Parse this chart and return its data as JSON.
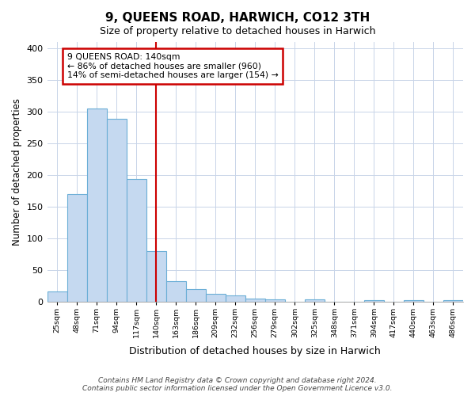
{
  "title": "9, QUEENS ROAD, HARWICH, CO12 3TH",
  "subtitle": "Size of property relative to detached houses in Harwich",
  "xlabel": "Distribution of detached houses by size in Harwich",
  "ylabel": "Number of detached properties",
  "bar_values": [
    16,
    169,
    305,
    288,
    193,
    79,
    32,
    19,
    12,
    9,
    5,
    3,
    0,
    3,
    0,
    0,
    2,
    0,
    2,
    0,
    2
  ],
  "bin_labels": [
    "25sqm",
    "48sqm",
    "71sqm",
    "94sqm",
    "117sqm",
    "140sqm",
    "163sqm",
    "186sqm",
    "209sqm",
    "232sqm",
    "256sqm",
    "279sqm",
    "302sqm",
    "325sqm",
    "348sqm",
    "371sqm",
    "394sqm",
    "417sqm",
    "440sqm",
    "463sqm",
    "486sqm"
  ],
  "bar_color": "#c5d9f0",
  "bar_edge_color": "#6aaed6",
  "vline_bin": 5,
  "vline_color": "#cc0000",
  "annotation_text": "9 QUEENS ROAD: 140sqm\n← 86% of detached houses are smaller (960)\n14% of semi-detached houses are larger (154) →",
  "annotation_box_color": "#ffffff",
  "annotation_box_edge": "#cc0000",
  "ylim": [
    0,
    410
  ],
  "yticks": [
    0,
    50,
    100,
    150,
    200,
    250,
    300,
    350,
    400
  ],
  "footer_text": "Contains HM Land Registry data © Crown copyright and database right 2024.\nContains public sector information licensed under the Open Government Licence v3.0.",
  "background_color": "#ffffff",
  "grid_color": "#c8d4e8"
}
